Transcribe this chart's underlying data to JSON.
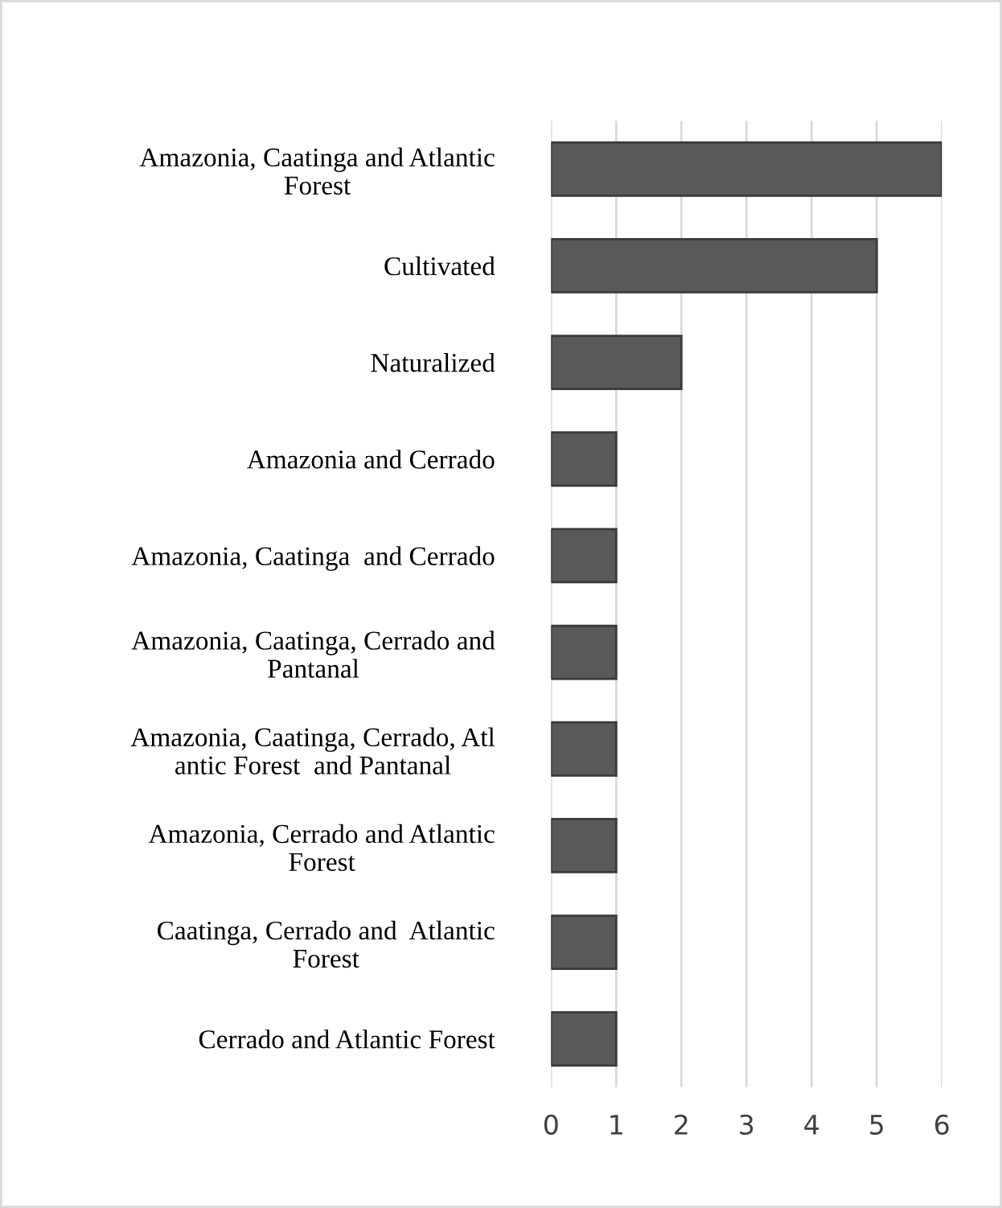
{
  "chart_data": {
    "type": "bar",
    "orientation": "horizontal",
    "categories": [
      "Amazonia, Caatinga and Atlantic\nForest",
      "Cultivated",
      "Naturalized",
      "Amazonia and Cerrado",
      "Amazonia, Caatinga  and Cerrado",
      "Amazonia, Caatinga, Cerrado and\nPantanal",
      "Amazonia, Caatinga, Cerrado, Atl\nantic Forest  and Pantanal",
      "Amazonia, Cerrado and Atlantic\nForest",
      "Caatinga, Cerrado and  Atlantic\nForest",
      "Cerrado and Atlantic Forest"
    ],
    "values": [
      6,
      5,
      2,
      1,
      1,
      1,
      1,
      1,
      1,
      1
    ],
    "color": "#595959",
    "xlim": [
      0,
      6
    ],
    "xticks": [
      0,
      1,
      2,
      3,
      4,
      5,
      6
    ],
    "grid": "x"
  }
}
